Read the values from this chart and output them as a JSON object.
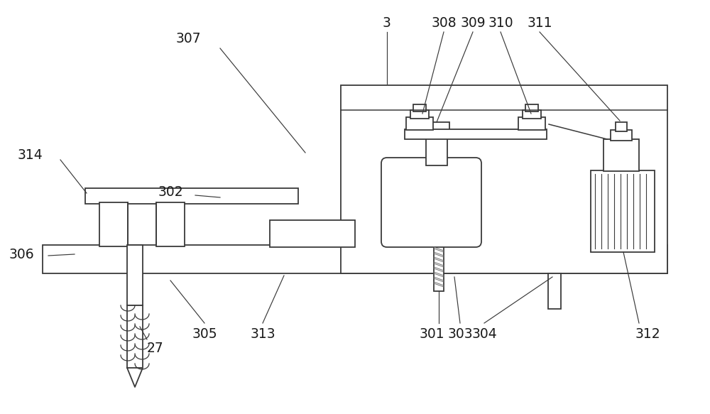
{
  "bg_color": "#ffffff",
  "lc": "#3a3a3a",
  "lw": 1.3,
  "fig_width": 10.0,
  "fig_height": 5.83,
  "dpi": 100,
  "label_fontsize": 13.5,
  "label_color": "#1a1a1a"
}
